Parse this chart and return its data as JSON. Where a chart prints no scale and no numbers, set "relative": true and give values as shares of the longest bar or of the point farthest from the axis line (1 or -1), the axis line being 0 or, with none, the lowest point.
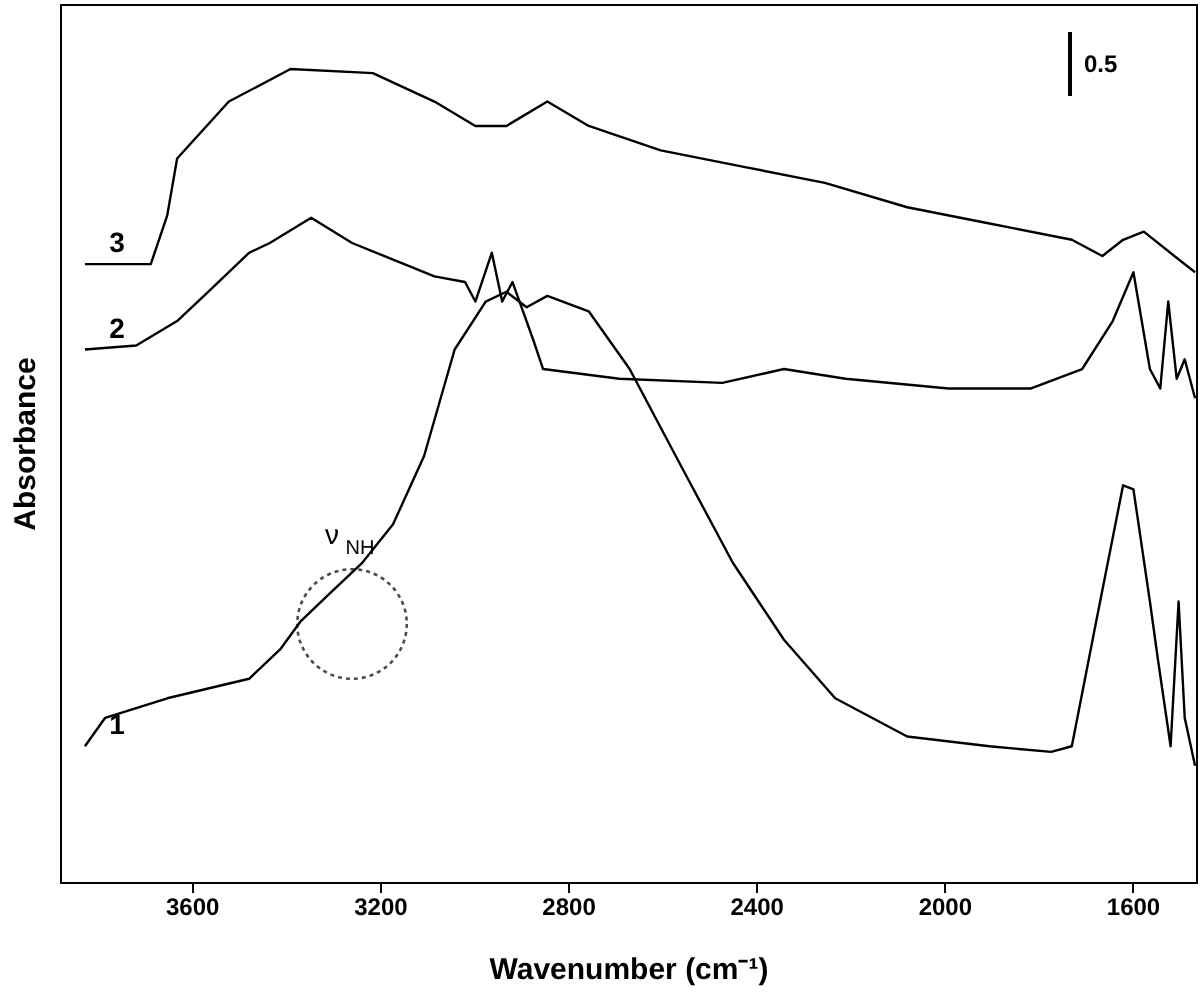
{
  "chart_data": {
    "type": "line",
    "relative": true,
    "xlabel": "Wavenumber (cm⁻¹)",
    "ylabel": "Absorbance",
    "xlim": [
      3880,
      1465
    ],
    "xticks": [
      {
        "value": 3600,
        "label": "3600"
      },
      {
        "value": 3200,
        "label": "3200"
      },
      {
        "value": 2800,
        "label": "2800"
      },
      {
        "value": 2400,
        "label": "2400"
      },
      {
        "value": 2000,
        "label": "2000"
      },
      {
        "value": 1600,
        "label": "1600"
      }
    ],
    "grid": false,
    "legend": false,
    "marker": "none",
    "line_style": "solid",
    "tick_labels": "x",
    "annotations": [
      "ν$_{NH}$",
      "0.5"
    ],
    "series": [
      {
        "name": "1",
        "color": "#000000",
        "x": [
          3827,
          3784,
          3652,
          3478,
          3412,
          3368,
          3303,
          3237,
          3172,
          3106,
          3041,
          2975,
          2931,
          2888,
          2844,
          2756,
          2669,
          2560,
          2450,
          2341,
          2232,
          2079,
          1904,
          1773,
          1729,
          1677,
          1620,
          1598,
          1563,
          1546,
          1519,
          1502,
          1489,
          1467
        ],
        "values": [
          0.167,
          0.202,
          0.226,
          0.25,
          0.286,
          0.321,
          0.357,
          0.393,
          0.44,
          0.524,
          0.655,
          0.714,
          0.726,
          0.707,
          0.721,
          0.702,
          0.631,
          0.512,
          0.393,
          0.298,
          0.226,
          0.179,
          0.167,
          0.16,
          0.167,
          0.321,
          0.488,
          0.483,
          0.345,
          0.274,
          0.167,
          0.345,
          0.202,
          0.143
        ]
      },
      {
        "name": "2",
        "color": "#000000",
        "x": [
          3827,
          3718,
          3631,
          3565,
          3478,
          3434,
          3346,
          3259,
          3084,
          3019,
          2997,
          2962,
          2940,
          2918,
          2874,
          2853,
          2691,
          2472,
          2341,
          2210,
          1991,
          1817,
          1707,
          1642,
          1598,
          1563,
          1541,
          1524,
          1506,
          1489,
          1467
        ],
        "values": [
          0.655,
          0.66,
          0.69,
          0.726,
          0.774,
          0.786,
          0.817,
          0.786,
          0.745,
          0.738,
          0.714,
          0.774,
          0.714,
          0.738,
          0.667,
          0.631,
          0.619,
          0.614,
          0.631,
          0.619,
          0.607,
          0.607,
          0.631,
          0.69,
          0.75,
          0.631,
          0.607,
          0.714,
          0.619,
          0.643,
          0.595
        ]
      },
      {
        "name": "3",
        "color": "#000000",
        "x": [
          3827,
          3687,
          3652,
          3631,
          3521,
          3390,
          3215,
          3084,
          2997,
          2931,
          2844,
          2756,
          2603,
          2429,
          2254,
          2079,
          1904,
          1729,
          1664,
          1620,
          1576,
          1511,
          1467
        ],
        "values": [
          0.76,
          0.76,
          0.82,
          0.89,
          0.96,
          1.0,
          0.995,
          0.96,
          0.93,
          0.93,
          0.96,
          0.93,
          0.9,
          0.88,
          0.86,
          0.83,
          0.81,
          0.79,
          0.77,
          0.79,
          0.8,
          0.77,
          0.75
        ]
      }
    ]
  }
}
